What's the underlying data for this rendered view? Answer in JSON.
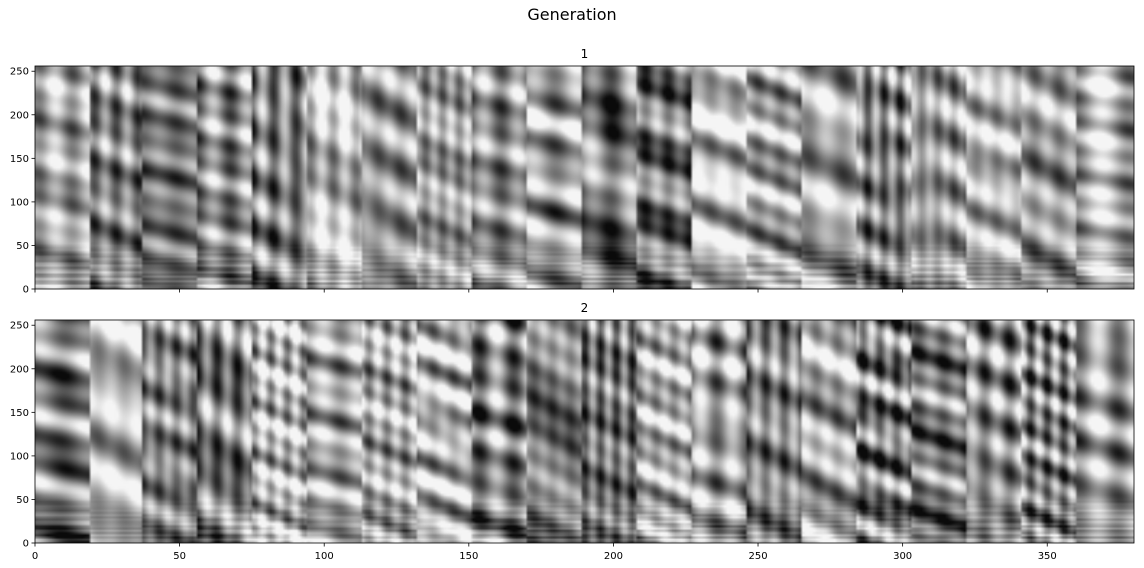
{
  "figure": {
    "title": "Generation"
  },
  "chart_data": [
    {
      "type": "heatmap",
      "title": "1",
      "colormap": "gray",
      "xlim": [
        0,
        380
      ],
      "ylim": [
        0,
        256
      ],
      "x_ticks": [
        0,
        50,
        100,
        150,
        200,
        250,
        300,
        350
      ],
      "x_tick_labels_visible": false,
      "y_ticks": [
        0,
        50,
        100,
        150,
        200,
        250
      ],
      "segment_boundaries": [
        0,
        19,
        37,
        56,
        75,
        94,
        113,
        132,
        151,
        170,
        189,
        208,
        227,
        246,
        265,
        284,
        303,
        322,
        341,
        360,
        380
      ]
    },
    {
      "type": "heatmap",
      "title": "2",
      "colormap": "gray",
      "xlim": [
        0,
        380
      ],
      "ylim": [
        0,
        256
      ],
      "x_ticks": [
        0,
        50,
        100,
        150,
        200,
        250,
        300,
        350
      ],
      "x_tick_labels_visible": true,
      "y_ticks": [
        0,
        50,
        100,
        150,
        200,
        250
      ],
      "segment_boundaries": [
        0,
        19,
        37,
        56,
        75,
        94,
        113,
        132,
        151,
        170,
        189,
        208,
        227,
        246,
        265,
        284,
        303,
        322,
        341,
        360,
        380
      ]
    }
  ]
}
